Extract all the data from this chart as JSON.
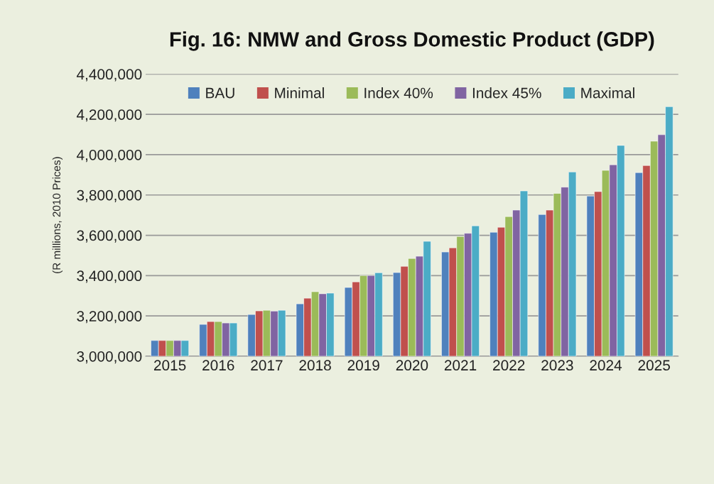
{
  "chart_data": {
    "type": "bar",
    "title": "Fig. 16: NMW and Gross Domestic Product (GDP)",
    "ylabel": "(R millions, 2010 Prices)",
    "categories": [
      "2015",
      "2016",
      "2017",
      "2018",
      "2019",
      "2020",
      "2021",
      "2022",
      "2023",
      "2024",
      "2025"
    ],
    "series": [
      {
        "name": "BAU",
        "color": "#4f81bd",
        "values": [
          3078000,
          3158000,
          3207000,
          3260000,
          3341000,
          3415000,
          3517000,
          3615000,
          3703000,
          3795000,
          3911000
        ]
      },
      {
        "name": "Minimal",
        "color": "#c0504d",
        "values": [
          3078000,
          3172000,
          3225000,
          3288000,
          3369000,
          3446000,
          3538000,
          3640000,
          3725000,
          3817000,
          3946000
        ]
      },
      {
        "name": "Index 40%",
        "color": "#9bbb59",
        "values": [
          3078000,
          3172000,
          3228000,
          3320000,
          3400000,
          3485000,
          3594000,
          3693000,
          3808000,
          3922000,
          4067000
        ]
      },
      {
        "name": "Index 45%",
        "color": "#8064a2",
        "values": [
          3078000,
          3165000,
          3224000,
          3310000,
          3400000,
          3496000,
          3610000,
          3725000,
          3839000,
          3950000,
          4099000
        ]
      },
      {
        "name": "Maximal",
        "color": "#4bacc6",
        "values": [
          3078000,
          3165000,
          3228000,
          3313000,
          3414000,
          3570000,
          3647000,
          3820000,
          3914000,
          4046000,
          4238000
        ]
      }
    ],
    "ylim": [
      3000000,
      4400000
    ],
    "yticks": [
      {
        "value": 3000000,
        "label": "3,000,000"
      },
      {
        "value": 3200000,
        "label": "3,200,000"
      },
      {
        "value": 3400000,
        "label": "3,400,000"
      },
      {
        "value": 3600000,
        "label": "3,600,000"
      },
      {
        "value": 3800000,
        "label": "3,800,000"
      },
      {
        "value": 4000000,
        "label": "4,000,000"
      },
      {
        "value": 4200000,
        "label": "4,200,000"
      },
      {
        "value": 4400000,
        "label": "4,400,000"
      }
    ],
    "grid": "y",
    "legend": "top"
  }
}
